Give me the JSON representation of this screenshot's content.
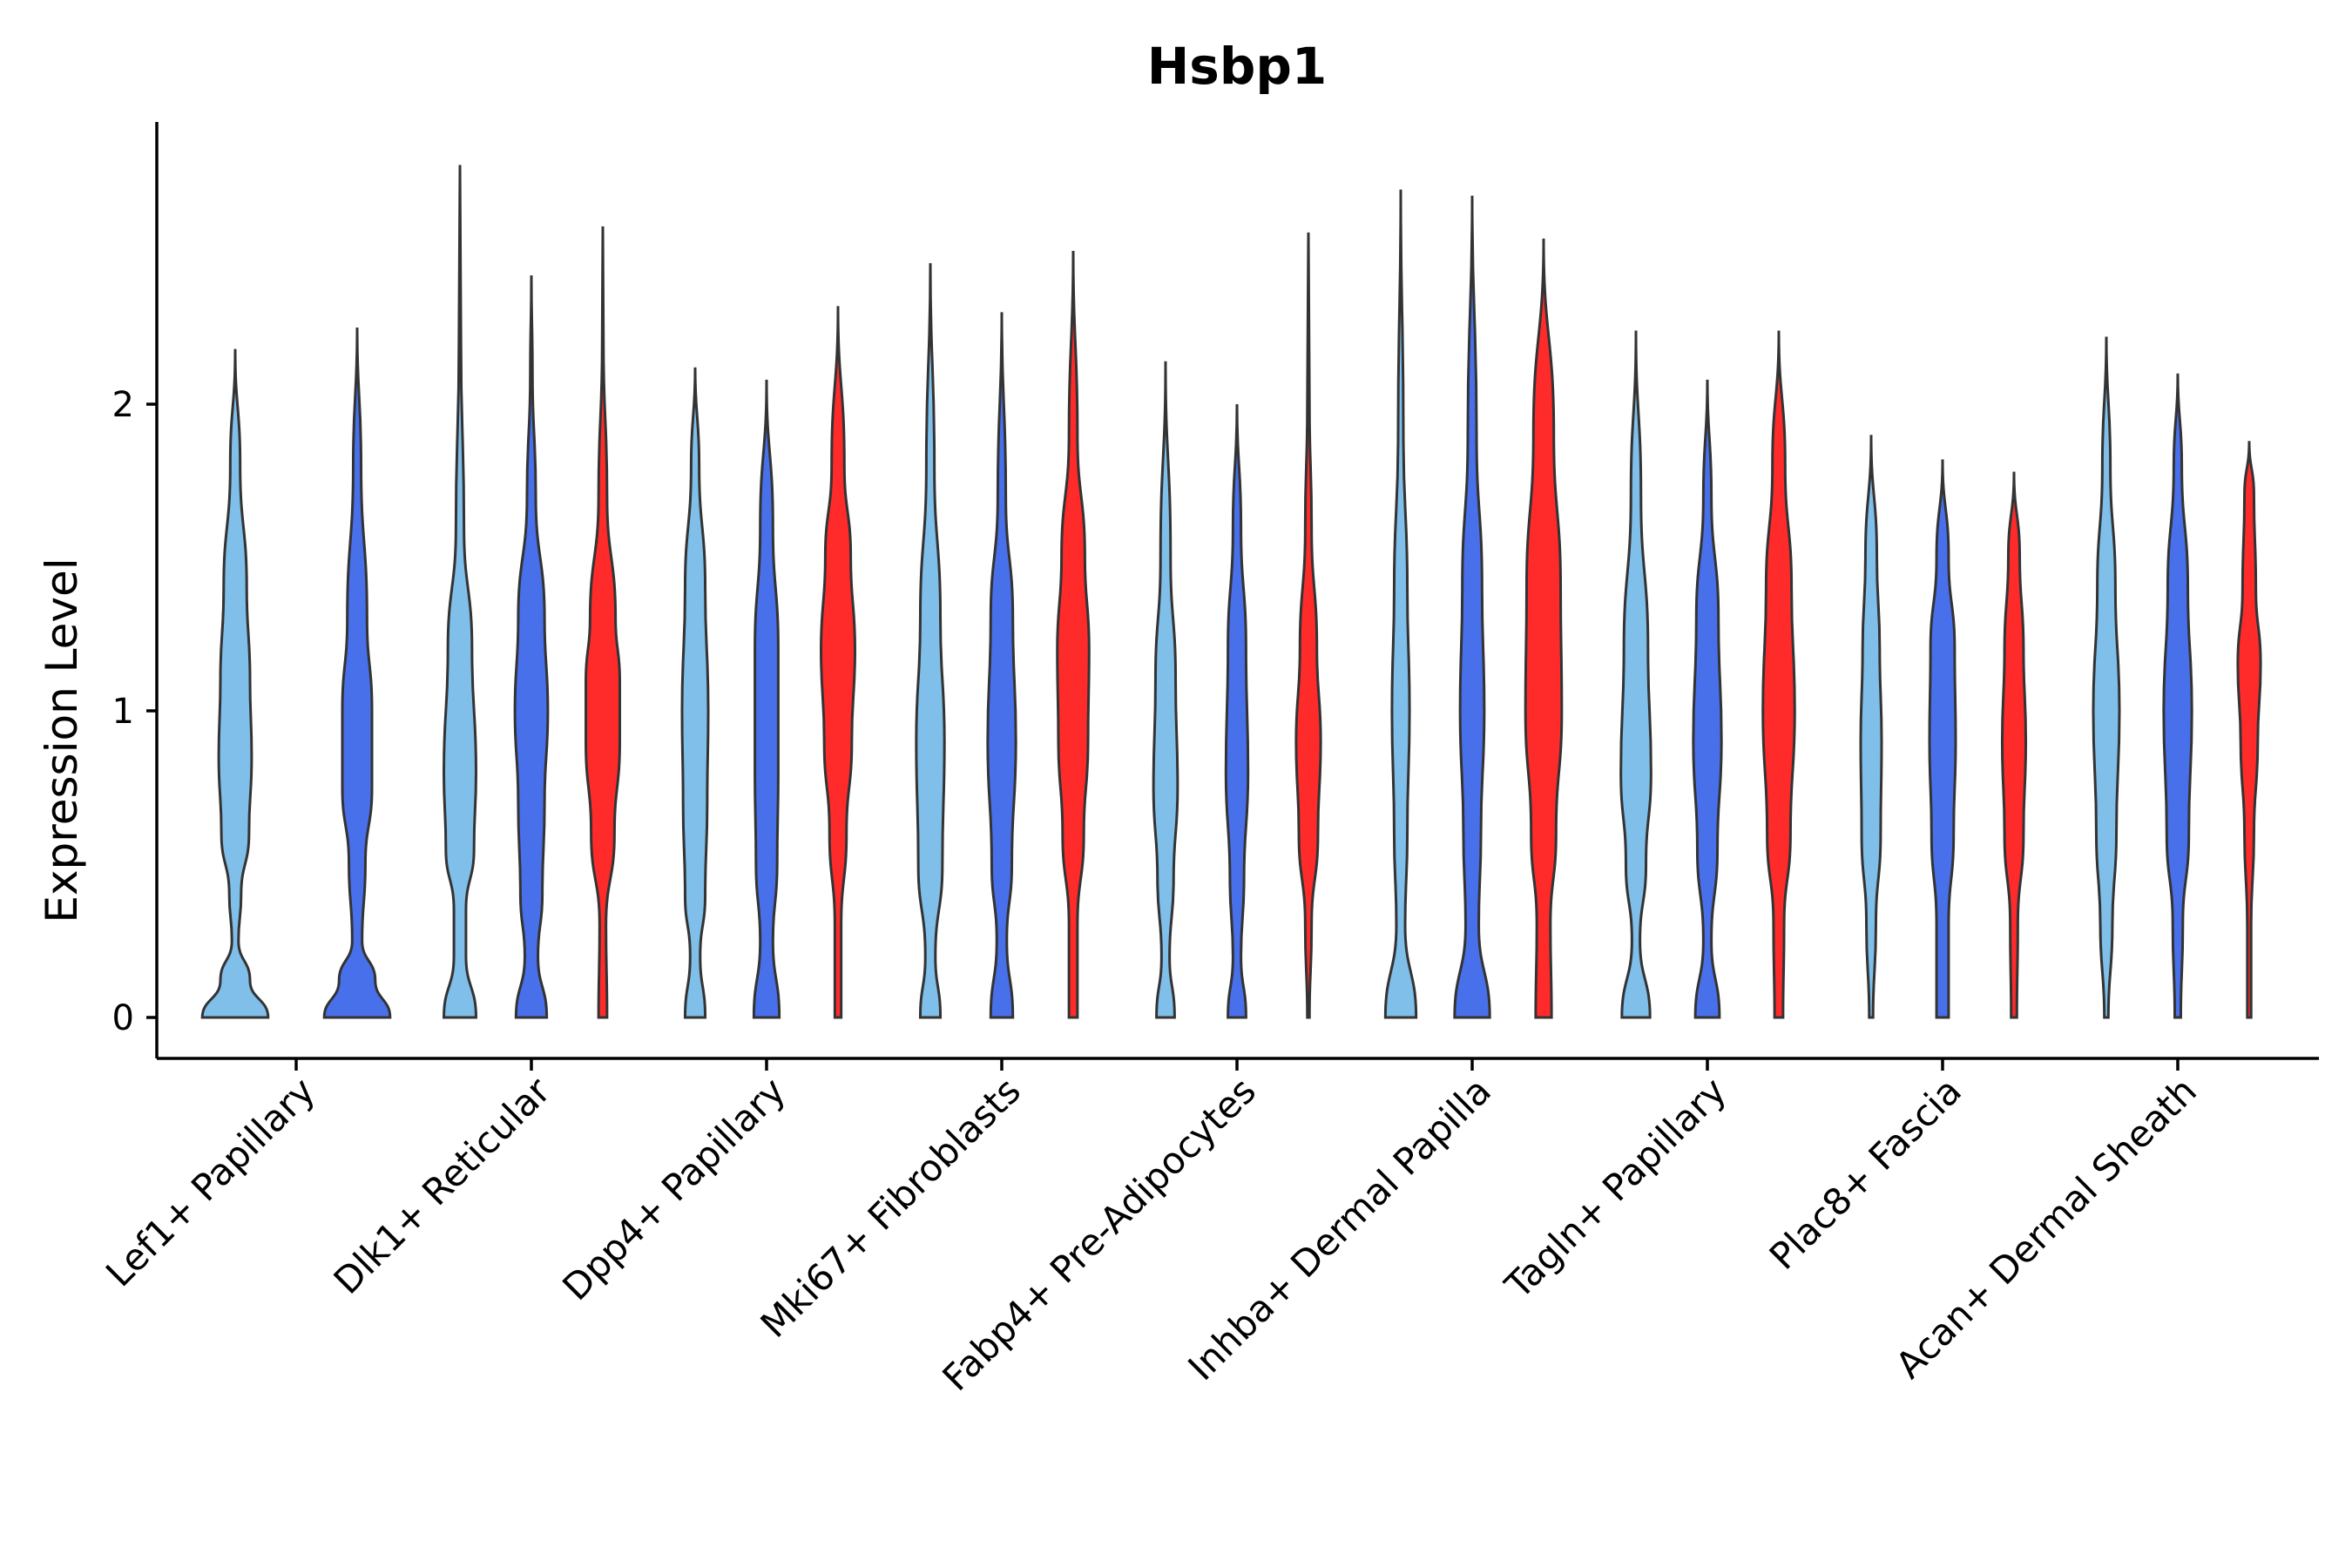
{
  "chart_data": {
    "type": "violin",
    "title": "Hsbp1",
    "xlabel": "",
    "ylabel": "Expression Level",
    "ylim": [
      -0.14,
      2.9
    ],
    "yticks": [
      0,
      1,
      2
    ],
    "grid": false,
    "colors": {
      "g1": "#7FBFEA",
      "g2": "#4870EB",
      "g3": "#FF2B2B"
    },
    "categories": [
      {
        "label": "Lef1+ Papillary",
        "violins": [
          {
            "group": "g1",
            "max": 2.18,
            "width": 0.9,
            "profile": [
              [
                0,
                1.0
              ],
              [
                0.12,
                0.45
              ],
              [
                0.25,
                0.1
              ],
              [
                0.4,
                0.18
              ],
              [
                0.6,
                0.42
              ],
              [
                0.85,
                0.5
              ],
              [
                1.1,
                0.45
              ],
              [
                1.4,
                0.35
              ],
              [
                1.8,
                0.15
              ],
              [
                2.18,
                0.0
              ]
            ]
          },
          {
            "group": "g2",
            "max": 2.25,
            "width": 0.9,
            "profile": [
              [
                0,
                1.0
              ],
              [
                0.12,
                0.55
              ],
              [
                0.25,
                0.15
              ],
              [
                0.5,
                0.25
              ],
              [
                0.75,
                0.45
              ],
              [
                1.0,
                0.45
              ],
              [
                1.3,
                0.3
              ],
              [
                1.8,
                0.12
              ],
              [
                2.25,
                0.0
              ]
            ]
          }
        ]
      },
      {
        "label": "Dlk1+ Reticular",
        "violins": [
          {
            "group": "g1",
            "max": 2.78,
            "width": 0.55,
            "profile": [
              [
                0,
                0.8
              ],
              [
                0.2,
                0.3
              ],
              [
                0.35,
                0.3
              ],
              [
                0.55,
                0.7
              ],
              [
                0.8,
                0.8
              ],
              [
                1.2,
                0.6
              ],
              [
                1.6,
                0.2
              ],
              [
                2.2,
                0.05
              ],
              [
                2.78,
                0.0
              ]
            ]
          },
          {
            "group": "g2",
            "max": 2.42,
            "width": 0.6,
            "profile": [
              [
                0,
                0.7
              ],
              [
                0.2,
                0.3
              ],
              [
                0.4,
                0.5
              ],
              [
                0.7,
                0.6
              ],
              [
                1.0,
                0.75
              ],
              [
                1.3,
                0.6
              ],
              [
                1.7,
                0.2
              ],
              [
                2.1,
                0.05
              ],
              [
                2.42,
                0.0
              ]
            ]
          },
          {
            "group": "g3",
            "max": 2.58,
            "width": 0.58,
            "profile": [
              [
                0,
                0.2
              ],
              [
                0.3,
                0.15
              ],
              [
                0.6,
                0.55
              ],
              [
                0.9,
                0.8
              ],
              [
                1.1,
                0.8
              ],
              [
                1.3,
                0.6
              ],
              [
                1.7,
                0.2
              ],
              [
                2.2,
                0.03
              ],
              [
                2.58,
                0.0
              ]
            ]
          }
        ]
      },
      {
        "label": "Dpp4+ Papillary",
        "violins": [
          {
            "group": "g1",
            "max": 2.12,
            "width": 0.55,
            "profile": [
              [
                0,
                0.5
              ],
              [
                0.2,
                0.25
              ],
              [
                0.4,
                0.5
              ],
              [
                0.7,
                0.6
              ],
              [
                1.0,
                0.65
              ],
              [
                1.4,
                0.5
              ],
              [
                1.8,
                0.2
              ],
              [
                2.12,
                0.0
              ]
            ]
          },
          {
            "group": "g2",
            "max": 2.08,
            "width": 0.58,
            "profile": [
              [
                0,
                0.6
              ],
              [
                0.25,
                0.3
              ],
              [
                0.5,
                0.5
              ],
              [
                0.8,
                0.55
              ],
              [
                1.2,
                0.55
              ],
              [
                1.6,
                0.3
              ],
              [
                2.08,
                0.0
              ]
            ]
          },
          {
            "group": "g3",
            "max": 2.32,
            "width": 0.58,
            "profile": [
              [
                0,
                0.15
              ],
              [
                0.3,
                0.15
              ],
              [
                0.6,
                0.4
              ],
              [
                0.9,
                0.65
              ],
              [
                1.2,
                0.8
              ],
              [
                1.5,
                0.6
              ],
              [
                1.8,
                0.3
              ],
              [
                2.32,
                0.0
              ]
            ]
          }
        ]
      },
      {
        "label": "Mki67+ Fibroblasts",
        "violins": [
          {
            "group": "g1",
            "max": 2.46,
            "width": 0.55,
            "profile": [
              [
                0,
                0.5
              ],
              [
                0.2,
                0.25
              ],
              [
                0.5,
                0.6
              ],
              [
                0.9,
                0.7
              ],
              [
                1.3,
                0.5
              ],
              [
                1.8,
                0.2
              ],
              [
                2.46,
                0.0
              ]
            ]
          },
          {
            "group": "g2",
            "max": 2.3,
            "width": 0.55,
            "profile": [
              [
                0,
                0.55
              ],
              [
                0.25,
                0.25
              ],
              [
                0.5,
                0.5
              ],
              [
                0.9,
                0.7
              ],
              [
                1.3,
                0.55
              ],
              [
                1.7,
                0.2
              ],
              [
                2.3,
                0.0
              ]
            ]
          },
          {
            "group": "g3",
            "max": 2.5,
            "width": 0.58,
            "profile": [
              [
                0,
                0.2
              ],
              [
                0.3,
                0.2
              ],
              [
                0.6,
                0.5
              ],
              [
                0.9,
                0.7
              ],
              [
                1.2,
                0.75
              ],
              [
                1.5,
                0.55
              ],
              [
                1.9,
                0.2
              ],
              [
                2.5,
                0.0
              ]
            ]
          }
        ]
      },
      {
        "label": "Fabp4+ Pre-Adipocytes",
        "violins": [
          {
            "group": "g1",
            "max": 2.14,
            "width": 0.55,
            "profile": [
              [
                0,
                0.45
              ],
              [
                0.2,
                0.2
              ],
              [
                0.45,
                0.4
              ],
              [
                0.75,
                0.6
              ],
              [
                1.1,
                0.5
              ],
              [
                1.5,
                0.25
              ],
              [
                2.14,
                0.0
              ]
            ]
          },
          {
            "group": "g2",
            "max": 2.0,
            "width": 0.55,
            "profile": [
              [
                0,
                0.45
              ],
              [
                0.2,
                0.2
              ],
              [
                0.45,
                0.35
              ],
              [
                0.8,
                0.55
              ],
              [
                1.2,
                0.45
              ],
              [
                1.6,
                0.2
              ],
              [
                2.0,
                0.0
              ]
            ]
          },
          {
            "group": "g3",
            "max": 2.56,
            "width": 0.58,
            "profile": [
              [
                0,
                0.05
              ],
              [
                0.3,
                0.15
              ],
              [
                0.6,
                0.45
              ],
              [
                0.9,
                0.58
              ],
              [
                1.2,
                0.4
              ],
              [
                1.6,
                0.15
              ],
              [
                2.0,
                0.05
              ],
              [
                2.56,
                0.0
              ]
            ]
          }
        ]
      },
      {
        "label": "Inhba+ Dermal Papilla",
        "violins": [
          {
            "group": "g1",
            "max": 2.7,
            "width": 0.6,
            "profile": [
              [
                0,
                0.7
              ],
              [
                0.3,
                0.2
              ],
              [
                0.6,
                0.3
              ],
              [
                1.0,
                0.4
              ],
              [
                1.4,
                0.3
              ],
              [
                1.9,
                0.12
              ],
              [
                2.7,
                0.0
              ]
            ]
          },
          {
            "group": "g2",
            "max": 2.68,
            "width": 0.6,
            "profile": [
              [
                0,
                0.8
              ],
              [
                0.3,
                0.3
              ],
              [
                0.6,
                0.4
              ],
              [
                1.0,
                0.55
              ],
              [
                1.4,
                0.45
              ],
              [
                1.9,
                0.2
              ],
              [
                2.68,
                0.0
              ]
            ]
          },
          {
            "group": "g3",
            "max": 2.54,
            "width": 0.62,
            "profile": [
              [
                0,
                0.35
              ],
              [
                0.3,
                0.3
              ],
              [
                0.6,
                0.55
              ],
              [
                1.0,
                0.8
              ],
              [
                1.4,
                0.75
              ],
              [
                1.9,
                0.45
              ],
              [
                2.54,
                0.0
              ]
            ]
          }
        ]
      },
      {
        "label": "Tagln+ Papillary",
        "violins": [
          {
            "group": "g1",
            "max": 2.24,
            "width": 0.55,
            "profile": [
              [
                0,
                0.7
              ],
              [
                0.25,
                0.2
              ],
              [
                0.5,
                0.5
              ],
              [
                0.8,
                0.75
              ],
              [
                1.2,
                0.6
              ],
              [
                1.7,
                0.25
              ],
              [
                2.24,
                0.0
              ]
            ]
          },
          {
            "group": "g2",
            "max": 2.08,
            "width": 0.55,
            "profile": [
              [
                0,
                0.6
              ],
              [
                0.25,
                0.2
              ],
              [
                0.55,
                0.5
              ],
              [
                0.9,
                0.7
              ],
              [
                1.3,
                0.55
              ],
              [
                1.7,
                0.2
              ],
              [
                2.08,
                0.0
              ]
            ]
          },
          {
            "group": "g3",
            "max": 2.24,
            "width": 0.58,
            "profile": [
              [
                0,
                0.2
              ],
              [
                0.3,
                0.25
              ],
              [
                0.6,
                0.55
              ],
              [
                1.0,
                0.75
              ],
              [
                1.4,
                0.6
              ],
              [
                1.8,
                0.3
              ],
              [
                2.24,
                0.0
              ]
            ]
          }
        ]
      },
      {
        "label": "Plac8+ Fascia",
        "violins": [
          {
            "group": "g1",
            "max": 1.9,
            "width": 0.52,
            "profile": [
              [
                0,
                0.1
              ],
              [
                0.3,
                0.25
              ],
              [
                0.6,
                0.5
              ],
              [
                0.9,
                0.55
              ],
              [
                1.2,
                0.45
              ],
              [
                1.5,
                0.3
              ],
              [
                1.9,
                0.0
              ]
            ]
          },
          {
            "group": "g2",
            "max": 1.82,
            "width": 0.55,
            "profile": [
              [
                0,
                0.3
              ],
              [
                0.3,
                0.3
              ],
              [
                0.6,
                0.55
              ],
              [
                0.9,
                0.65
              ],
              [
                1.2,
                0.6
              ],
              [
                1.5,
                0.3
              ],
              [
                1.82,
                0.0
              ]
            ]
          },
          {
            "group": "g3",
            "max": 1.78,
            "width": 0.52,
            "profile": [
              [
                0,
                0.15
              ],
              [
                0.3,
                0.2
              ],
              [
                0.6,
                0.5
              ],
              [
                0.9,
                0.62
              ],
              [
                1.2,
                0.5
              ],
              [
                1.5,
                0.3
              ],
              [
                1.78,
                0.0
              ]
            ]
          }
        ]
      },
      {
        "label": "Acan+ Dermal Sheath",
        "violins": [
          {
            "group": "g1",
            "max": 2.22,
            "width": 0.55,
            "profile": [
              [
                0,
                0.1
              ],
              [
                0.3,
                0.3
              ],
              [
                0.6,
                0.5
              ],
              [
                1.0,
                0.65
              ],
              [
                1.4,
                0.45
              ],
              [
                1.8,
                0.2
              ],
              [
                2.22,
                0.0
              ]
            ]
          },
          {
            "group": "g2",
            "max": 2.1,
            "width": 0.55,
            "profile": [
              [
                0,
                0.15
              ],
              [
                0.3,
                0.25
              ],
              [
                0.6,
                0.55
              ],
              [
                1.0,
                0.7
              ],
              [
                1.4,
                0.5
              ],
              [
                1.8,
                0.2
              ],
              [
                2.1,
                0.0
              ]
            ]
          },
          {
            "group": "g3",
            "max": 1.88,
            "width": 0.52,
            "profile": [
              [
                0,
                0.1
              ],
              [
                0.3,
                0.1
              ],
              [
                0.6,
                0.25
              ],
              [
                0.9,
                0.45
              ],
              [
                1.15,
                0.6
              ],
              [
                1.4,
                0.35
              ],
              [
                1.7,
                0.25
              ],
              [
                1.88,
                0.0
              ]
            ]
          }
        ]
      }
    ]
  }
}
